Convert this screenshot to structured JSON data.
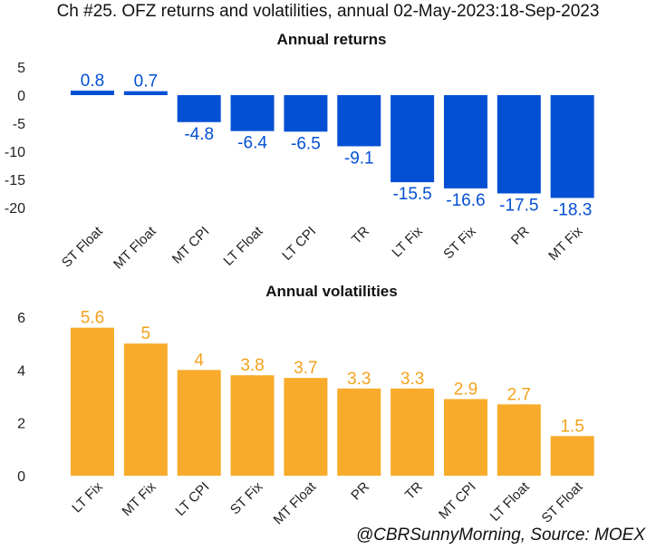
{
  "title": "Ch #25. OFZ returns and volatilities, annual 02-May-2023:18-Sep-2023",
  "source": "@CBRSunnyMorning, Source: MOEX",
  "colors": {
    "returns": "#0350D4",
    "volatilities": "#F8AB2A"
  },
  "chart_data": [
    {
      "type": "bar",
      "title": "Annual returns",
      "categories": [
        "ST Float",
        "MT Float",
        "MT CPI",
        "LT Float",
        "LT CPI",
        "TR",
        "LT Fix",
        "ST Fix",
        "PR",
        "MT Fix"
      ],
      "values": [
        0.8,
        0.7,
        -4.8,
        -6.4,
        -6.5,
        -9.1,
        -15.5,
        -16.6,
        -17.5,
        -18.3
      ],
      "yticks": [
        5,
        0,
        -5,
        -10,
        -15,
        -20
      ],
      "ylim": [
        -21,
        5.5
      ],
      "grid": false,
      "color": "#0350D4"
    },
    {
      "type": "bar",
      "title": "Annual volatilities",
      "categories": [
        "LT Fix",
        "MT Fix",
        "LT CPI",
        "ST Fix",
        "MT Float",
        "PR",
        "TR",
        "MT CPI",
        "LT Float",
        "ST Float"
      ],
      "values": [
        5.6,
        5,
        4,
        3.8,
        3.7,
        3.3,
        3.3,
        2.9,
        2.7,
        1.5
      ],
      "yticks": [
        0,
        2,
        4,
        6
      ],
      "ylim": [
        0,
        6.2
      ],
      "grid": false,
      "color": "#F8AB2A"
    }
  ]
}
